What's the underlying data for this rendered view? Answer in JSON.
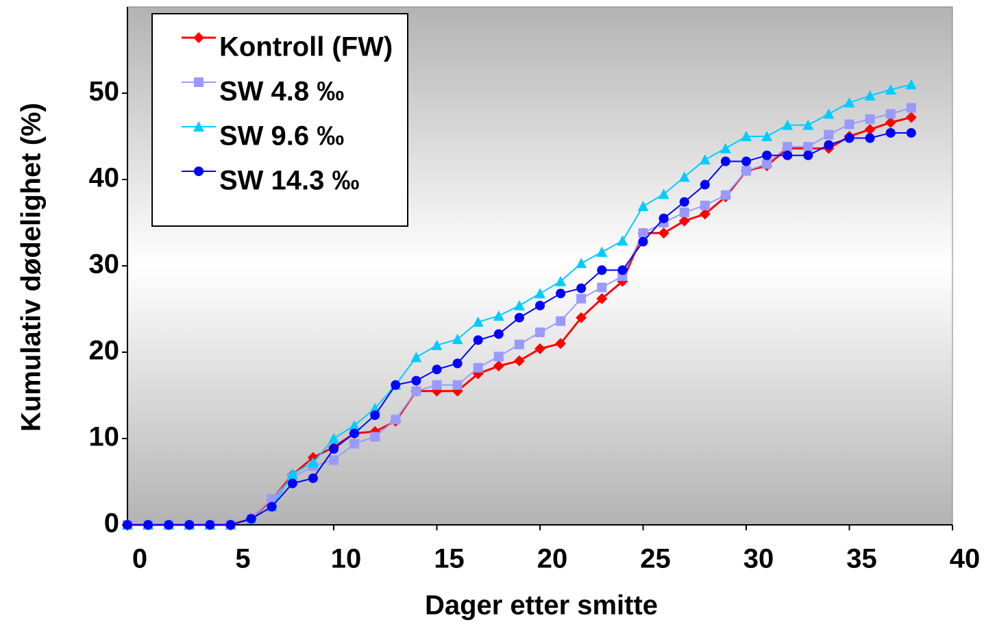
{
  "chart_data": {
    "type": "line",
    "x_label": "Dager etter smitte",
    "y_label": "Kumulativ dødelighet (%)",
    "x": [
      0,
      1,
      2,
      3,
      4,
      5,
      6,
      7,
      8,
      9,
      10,
      11,
      12,
      13,
      14,
      15,
      16,
      17,
      18,
      19,
      20,
      21,
      22,
      23,
      24,
      25,
      26,
      27,
      28,
      29,
      30,
      31,
      32,
      33,
      34,
      35,
      36,
      37,
      38
    ],
    "series": [
      {
        "name": "Kontroll (FW)",
        "color": "#ff0000",
        "marker": "diamond",
        "values": [
          0,
          0,
          0,
          0,
          0,
          0,
          0.7,
          2.9,
          5.8,
          7.8,
          9,
          10.6,
          10.8,
          12,
          15.5,
          15.5,
          15.5,
          17.5,
          18.4,
          19,
          20.4,
          21,
          24,
          26.2,
          28.2,
          33.8,
          33.8,
          35.2,
          36,
          38,
          41,
          41.6,
          43.6,
          43.6,
          43.6,
          45,
          45.8,
          46.6,
          47.2
        ]
      },
      {
        "name": "SW 4.8 ‰",
        "color": "#9999ff",
        "marker": "square",
        "values": [
          0,
          0,
          0,
          0,
          0,
          0,
          0.7,
          3,
          5.5,
          6.8,
          7.5,
          9.4,
          10.2,
          12.2,
          15.5,
          16.2,
          16.2,
          18.2,
          19.5,
          20.9,
          22.3,
          23.6,
          26.2,
          27.5,
          28.8,
          33.8,
          35,
          36.2,
          37,
          38.2,
          41,
          41.8,
          43.8,
          43.8,
          45.2,
          46.4,
          47,
          47.6,
          48.3
        ]
      },
      {
        "name": "SW 9.6 ‰",
        "color": "#00ccff",
        "marker": "triangle",
        "values": [
          0,
          0,
          0,
          0,
          0,
          0,
          0.7,
          2.1,
          5.9,
          7.2,
          10,
          11.5,
          13.5,
          16.2,
          19.4,
          20.8,
          21.5,
          23.5,
          24.2,
          25.4,
          26.8,
          28.2,
          30.3,
          31.6,
          32.9,
          36.9,
          38.3,
          40.3,
          42.3,
          43.6,
          45,
          45,
          46.3,
          46.3,
          47.6,
          48.9,
          49.7,
          50.4,
          51
        ]
      },
      {
        "name": "SW 14.3 ‰",
        "color": "#0000ff",
        "marker": "circle",
        "values": [
          0,
          0,
          0,
          0,
          0,
          0,
          0.7,
          2.1,
          4.8,
          5.4,
          8.8,
          10.6,
          12.7,
          16.2,
          16.7,
          18,
          18.7,
          21.4,
          22.1,
          24,
          25.4,
          26.8,
          27.4,
          29.5,
          29.5,
          32.8,
          35.5,
          37.4,
          39.4,
          42.1,
          42.1,
          42.8,
          42.8,
          42.8,
          44,
          44.8,
          44.8,
          45.4,
          45.4
        ]
      }
    ],
    "xlim": [
      0,
      40
    ],
    "xticks": [
      0,
      5,
      10,
      15,
      20,
      25,
      30,
      35,
      40
    ],
    "ylim": [
      0,
      60
    ],
    "yticks": [
      0,
      10,
      20,
      30,
      40,
      50
    ],
    "legend": "upper left"
  }
}
